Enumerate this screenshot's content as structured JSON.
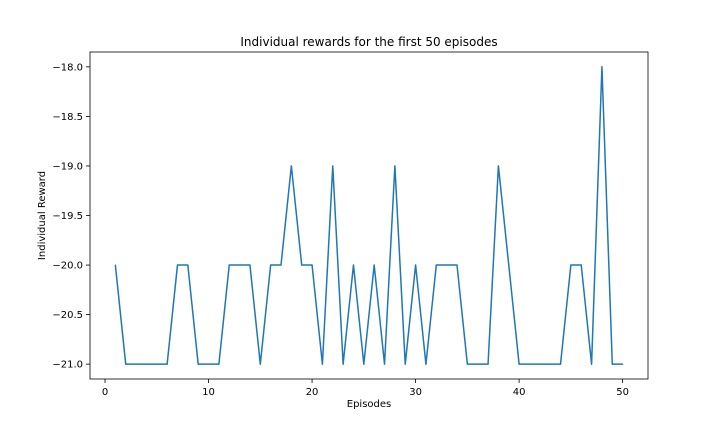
{
  "chart_data": {
    "type": "line",
    "title": "Individual rewards for the first 50 episodes",
    "xlabel": "Episodes",
    "ylabel": "Individual Reward",
    "xlim": [
      -1.45,
      52.45
    ],
    "ylim": [
      -21.15,
      -17.85
    ],
    "xticks": [
      0,
      10,
      20,
      30,
      40,
      50
    ],
    "yticks": [
      -21.0,
      -20.5,
      -20.0,
      -19.5,
      -19.0,
      -18.5,
      -18.0
    ],
    "grid": false,
    "series": [
      {
        "color": "#1f77b4",
        "x": [
          1,
          2,
          3,
          4,
          5,
          6,
          7,
          8,
          9,
          10,
          11,
          12,
          13,
          14,
          15,
          16,
          17,
          18,
          19,
          20,
          21,
          22,
          23,
          24,
          25,
          26,
          27,
          28,
          29,
          30,
          31,
          32,
          33,
          34,
          35,
          36,
          37,
          38,
          39,
          40,
          41,
          42,
          43,
          44,
          45,
          46,
          47,
          48,
          49,
          50
        ],
        "y": [
          -20,
          -21,
          -21,
          -21,
          -21,
          -21,
          -20,
          -20,
          -21,
          -21,
          -21,
          -20,
          -20,
          -20,
          -21,
          -20,
          -20,
          -19,
          -20,
          -20,
          -21,
          -19,
          -21,
          -20,
          -21,
          -20,
          -21,
          -19,
          -21,
          -20,
          -21,
          -20,
          -20,
          -20,
          -21,
          -21,
          -21,
          -19,
          -20,
          -21,
          -21,
          -21,
          -21,
          -21,
          -20,
          -20,
          -21,
          -18,
          -21,
          -21
        ]
      }
    ]
  }
}
